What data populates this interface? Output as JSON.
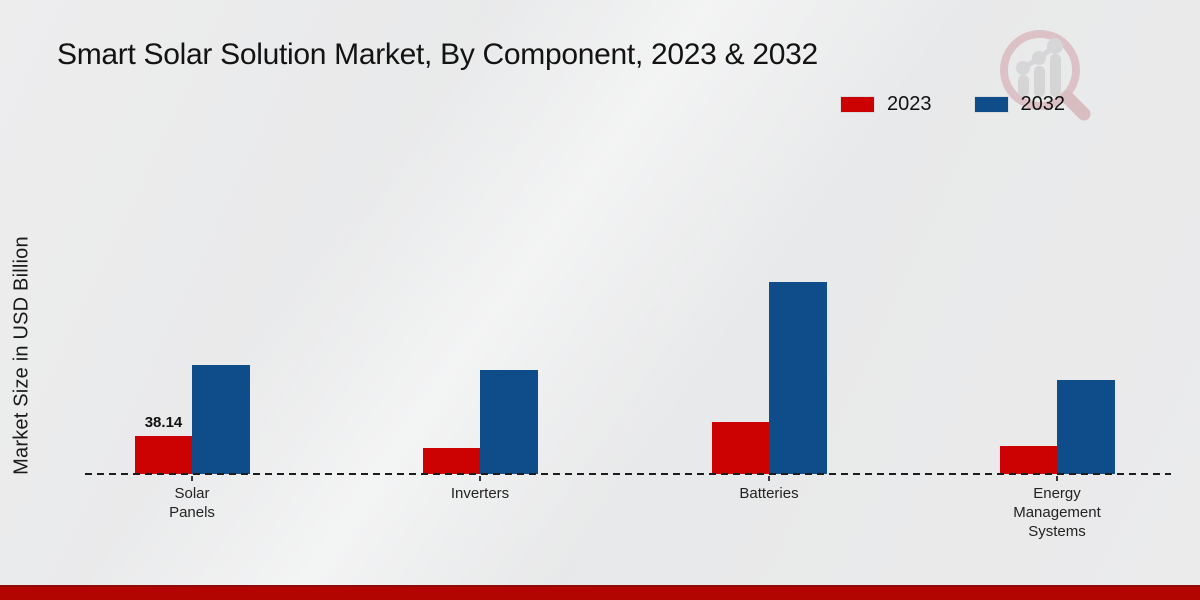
{
  "header": {
    "title": "Smart Solar Solution Market, By Component, 2023 & 2032"
  },
  "axis": {
    "y_label": "Market Size in USD Billion"
  },
  "legend": {
    "position": "top-right",
    "items": [
      {
        "label": "2023",
        "color": "#cb0201"
      },
      {
        "label": "2032",
        "color": "#0e4d89"
      }
    ]
  },
  "chart_data": {
    "type": "bar",
    "title": "Smart Solar Solution Market, By Component, 2023 & 2032",
    "xlabel": "",
    "ylabel": "Market Size in USD Billion",
    "categories": [
      "Solar Panels",
      "Inverters",
      "Batteries",
      "Energy Management Systems"
    ],
    "series": [
      {
        "name": "2023",
        "color": "#cb0201",
        "values": [
          38.14,
          26,
          52,
          28
        ]
      },
      {
        "name": "2032",
        "color": "#0e4d89",
        "values": [
          110,
          105,
          193,
          94
        ]
      }
    ],
    "data_labels": [
      {
        "series_index": 0,
        "category_index": 0,
        "text": "38.14"
      }
    ],
    "ylim": [
      0,
      200
    ],
    "grid": false,
    "axis_line_style": "dashed",
    "legend_position": "top-right"
  },
  "colors": {
    "background": "#e9eaeb",
    "bar_2023": "#cb0201",
    "bar_2032": "#0e4d89",
    "bottom_band": "#b20400",
    "bottom_band_edge": "#8e0c06",
    "baseline": "#1d1d1d",
    "title_text": "#131313"
  },
  "watermark": {
    "icon": "magnifier-bar-chart-logo"
  }
}
